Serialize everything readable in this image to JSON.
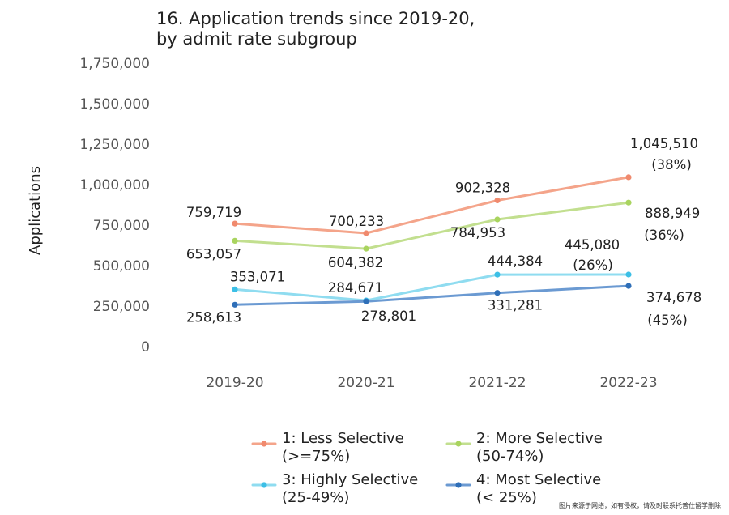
{
  "chart_data": {
    "type": "line",
    "title": [
      "16. Application trends since 2019-20,",
      "by admit rate subgroup"
    ],
    "xlabel": "",
    "ylabel": "Applications",
    "categories": [
      "2019-20",
      "2020-21",
      "2021-22",
      "2022-23"
    ],
    "ylim": [
      0,
      1750000
    ],
    "y_ticks": [
      {
        "value": 0,
        "label": "0"
      },
      {
        "value": 250000,
        "label": "250,000"
      },
      {
        "value": 500000,
        "label": "500,000"
      },
      {
        "value": 750000,
        "label": "750,000"
      },
      {
        "value": 1000000,
        "label": "1,000,000"
      },
      {
        "value": 1250000,
        "label": "1,250,000"
      },
      {
        "value": 1500000,
        "label": "1,500,000"
      },
      {
        "value": 1750000,
        "label": "1,750,000"
      }
    ],
    "grid": false,
    "legend_position": "bottom",
    "series": [
      {
        "name": "1: Less Selective",
        "name_line2": "(>=75%)",
        "color": "#f4a48a",
        "values": [
          759719,
          700233,
          902328,
          1045510
        ],
        "labels": [
          "759,719",
          "700,233",
          "902,328",
          "1,045,510"
        ],
        "end_note": "(38%)"
      },
      {
        "name": "2: More Selective",
        "name_line2": "(50-74%)",
        "color": "#c2df8f",
        "values": [
          653057,
          604382,
          784953,
          888949
        ],
        "labels": [
          "653,057",
          "604,382",
          "784,953",
          "888,949"
        ],
        "end_note": "(36%)"
      },
      {
        "name": "3: Highly Selective",
        "name_line2": "(25-49%)",
        "color": "#8fdcf0",
        "values": [
          353071,
          284671,
          444384,
          445080
        ],
        "labels": [
          "353,071",
          "284,671",
          "444,384",
          "445,080"
        ],
        "end_note": "(26%)"
      },
      {
        "name": "4: Most Selective",
        "name_line2": "(< 25%)",
        "color": "#6b9ad2",
        "values": [
          258613,
          278801,
          331281,
          374678
        ],
        "labels": [
          "258,613",
          "278,801",
          "331,281",
          "374,678"
        ],
        "end_note": "(45%)"
      }
    ]
  },
  "colors": {
    "marker_less": "#f08a6e",
    "marker_more": "#a9d45f",
    "marker_highly": "#3cbfe6",
    "marker_most": "#2f6fb8"
  },
  "watermark": "图片来源于网络，如有侵权，请及时联系托普仕留学删除"
}
